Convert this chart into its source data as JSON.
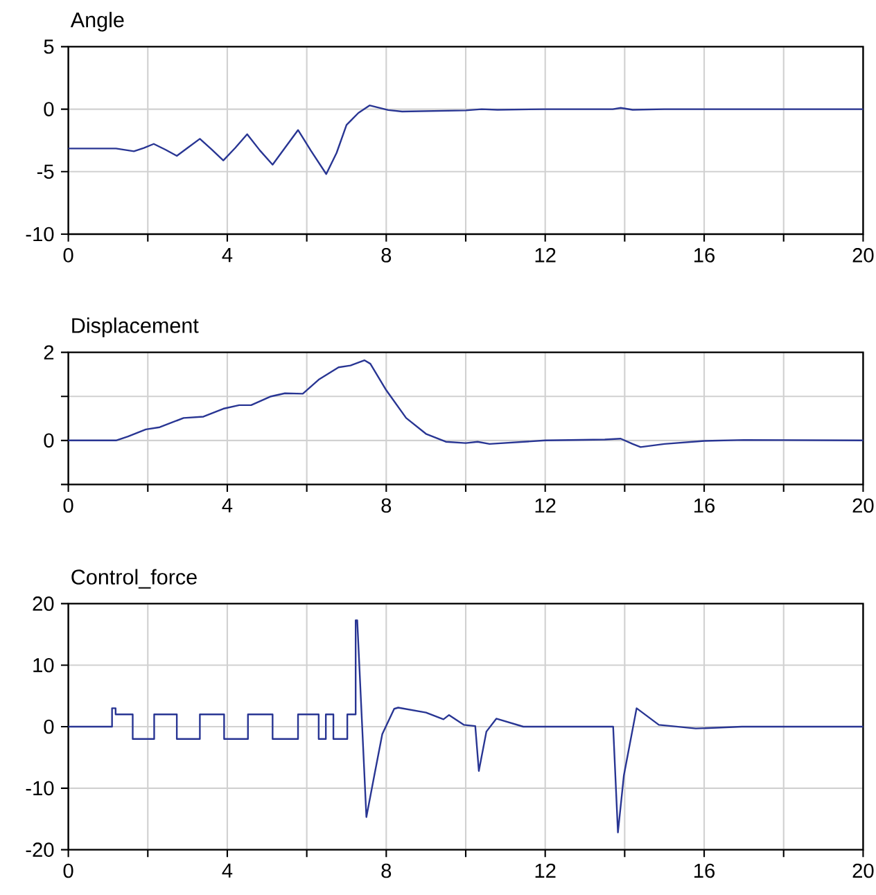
{
  "chart_data": [
    {
      "type": "line",
      "title": "Angle",
      "xlim": [
        0,
        20
      ],
      "ylim": [
        -10,
        5
      ],
      "grid": true,
      "xticks": [
        0,
        {
          "value": 2,
          "label": null
        },
        4,
        {
          "value": 6,
          "label": null
        },
        8,
        {
          "value": 10,
          "label": null
        },
        12,
        {
          "value": 14,
          "label": null
        },
        16,
        {
          "value": 18,
          "label": null
        },
        20
      ],
      "yticks": [
        -10,
        -5,
        0,
        5
      ],
      "series": [
        {
          "color": "#283593",
          "x": [
            0,
            1.2,
            1.65,
            1.9,
            2.15,
            2.45,
            2.73,
            3.0,
            3.31,
            3.6,
            3.9,
            4.2,
            4.5,
            4.82,
            5.14,
            5.45,
            5.78,
            6.1,
            6.49,
            6.75,
            7.0,
            7.3,
            7.58,
            8.05,
            8.4,
            10,
            10.4,
            10.8,
            12,
            13.7,
            13.9,
            14.2,
            15,
            20
          ],
          "values": [
            -3.15,
            -3.15,
            -3.37,
            -3.1,
            -2.78,
            -3.25,
            -3.74,
            -3.1,
            -2.37,
            -3.2,
            -4.1,
            -3.1,
            -2.0,
            -3.3,
            -4.44,
            -3.1,
            -1.67,
            -3.3,
            -5.19,
            -3.5,
            -1.26,
            -0.3,
            0.3,
            -0.07,
            -0.19,
            -0.1,
            0,
            -0.05,
            0,
            0,
            0.1,
            -0.05,
            0,
            0
          ]
        }
      ]
    },
    {
      "type": "line",
      "title": "Displacement",
      "xlim": [
        0,
        20
      ],
      "ylim": [
        -1,
        2
      ],
      "grid": true,
      "xticks": [
        0,
        {
          "value": 2,
          "label": null
        },
        4,
        {
          "value": 6,
          "label": null
        },
        8,
        {
          "value": 10,
          "label": null
        },
        12,
        {
          "value": 14,
          "label": null
        },
        16,
        {
          "value": 18,
          "label": null
        },
        20
      ],
      "yticks": [
        {
          "value": -1,
          "label": null
        },
        0,
        {
          "value": 1,
          "label": null
        },
        2
      ],
      "series": [
        {
          "color": "#283593",
          "x": [
            0,
            1.2,
            1.5,
            1.95,
            2.3,
            2.9,
            3.4,
            3.9,
            4.3,
            4.6,
            5.1,
            5.45,
            5.9,
            6.3,
            6.8,
            7.1,
            7.45,
            7.6,
            8.0,
            8.5,
            9.0,
            9.5,
            10,
            10.3,
            10.6,
            12,
            13.5,
            13.9,
            14.2,
            14.4,
            15,
            16,
            17,
            20
          ],
          "values": [
            0,
            0,
            0.09,
            0.25,
            0.3,
            0.51,
            0.54,
            0.72,
            0.8,
            0.8,
            1.0,
            1.07,
            1.06,
            1.38,
            1.66,
            1.7,
            1.82,
            1.74,
            1.14,
            0.51,
            0.15,
            -0.03,
            -0.06,
            -0.03,
            -0.08,
            0,
            0.02,
            0.04,
            -0.08,
            -0.15,
            -0.08,
            -0.01,
            0.01,
            0
          ]
        }
      ]
    },
    {
      "type": "line",
      "title": "Control_force",
      "xlim": [
        0,
        20
      ],
      "ylim": [
        -20,
        20
      ],
      "grid": true,
      "xticks": [
        0,
        {
          "value": 2,
          "label": null
        },
        4,
        {
          "value": 6,
          "label": null
        },
        8,
        {
          "value": 10,
          "label": null
        },
        12,
        {
          "value": 14,
          "label": null
        },
        16,
        {
          "value": 18,
          "label": null
        },
        20
      ],
      "yticks": [
        -20,
        -10,
        0,
        10,
        20
      ],
      "series": [
        {
          "color": "#283593",
          "x": [
            0,
            1.1,
            1.1,
            1.19,
            1.19,
            1.62,
            1.62,
            2.16,
            2.16,
            2.73,
            2.73,
            3.31,
            3.31,
            3.92,
            3.92,
            4.52,
            4.52,
            5.14,
            5.14,
            5.78,
            5.78,
            6.3,
            6.3,
            6.48,
            6.48,
            6.67,
            6.67,
            7.02,
            7.02,
            7.23,
            7.23,
            7.27,
            7.5,
            7.7,
            7.9,
            8.2,
            8.3,
            9.0,
            9.44,
            9.58,
            9.95,
            10.24,
            10.33,
            10.52,
            10.77,
            11.45,
            13.71,
            13.83,
            13.98,
            14.3,
            14.86,
            15.79,
            16.95,
            20
          ],
          "values": [
            0,
            0,
            3,
            3,
            2,
            2,
            -2,
            -2,
            2,
            2,
            -2,
            -2,
            2,
            2,
            -2,
            -2,
            2,
            2,
            -2,
            -2,
            2,
            2,
            -2,
            -2,
            2,
            2,
            -2,
            -2,
            2,
            2,
            17.3,
            17.3,
            -14.7,
            -7.9,
            -1.2,
            2.9,
            3.1,
            2.3,
            1.2,
            1.9,
            0.3,
            0.1,
            -7.2,
            -0.8,
            1.3,
            0,
            0,
            -17.2,
            -7.9,
            3.0,
            0.3,
            -0.3,
            0,
            0
          ]
        }
      ]
    }
  ]
}
